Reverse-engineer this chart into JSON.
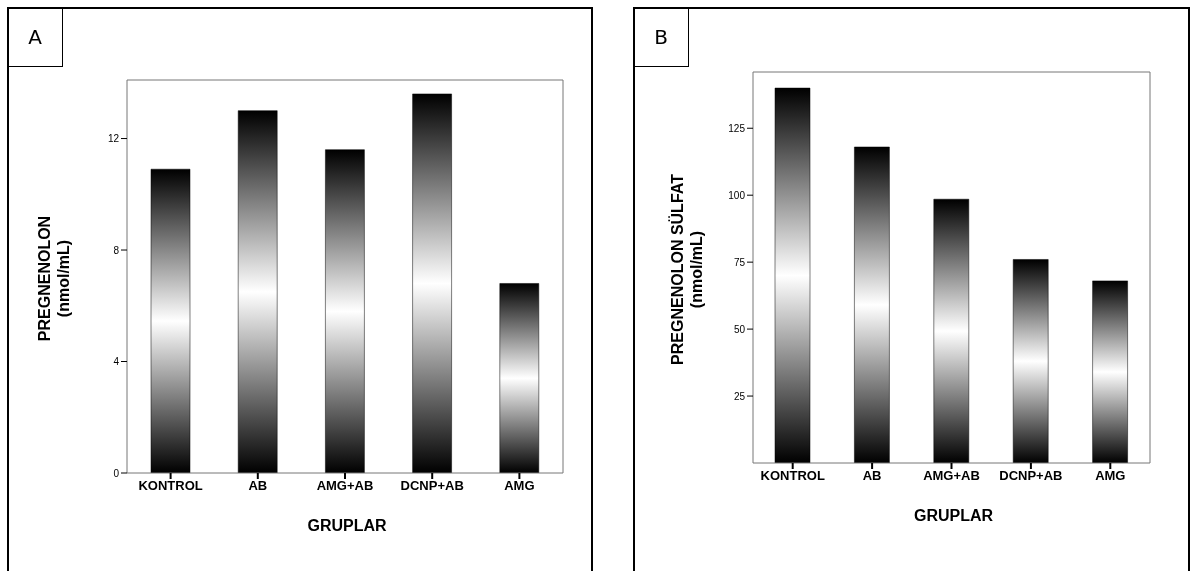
{
  "chart_data": [
    {
      "type": "bar",
      "title": "A",
      "xlabel": "GRUPLAR",
      "ylabel": "PREGNENOLON\n(nmol/mL)",
      "categories": [
        "KONTROL",
        "AB",
        "AMG+AB",
        "DCNP+AB",
        "AMG"
      ],
      "values": [
        10.9,
        13.0,
        11.6,
        13.6,
        6.8
      ],
      "color": "#000000",
      "ylim": [
        0,
        14.1
      ],
      "yticks": [
        0,
        4,
        8,
        12
      ]
    },
    {
      "type": "bar",
      "title": "B",
      "xlabel": "GRUPLAR",
      "ylabel": "PREGNENOLON SÜLFAT\n(nmol/mL)",
      "categories": [
        "KONTROL",
        "AB",
        "AMG+AB",
        "DCNP+AB",
        "AMG"
      ],
      "values": [
        140,
        118,
        98.5,
        76,
        68
      ],
      "color": "#000000",
      "ylim": [
        0,
        146
      ],
      "yticks": [
        25,
        50,
        75,
        100,
        125
      ]
    }
  ]
}
